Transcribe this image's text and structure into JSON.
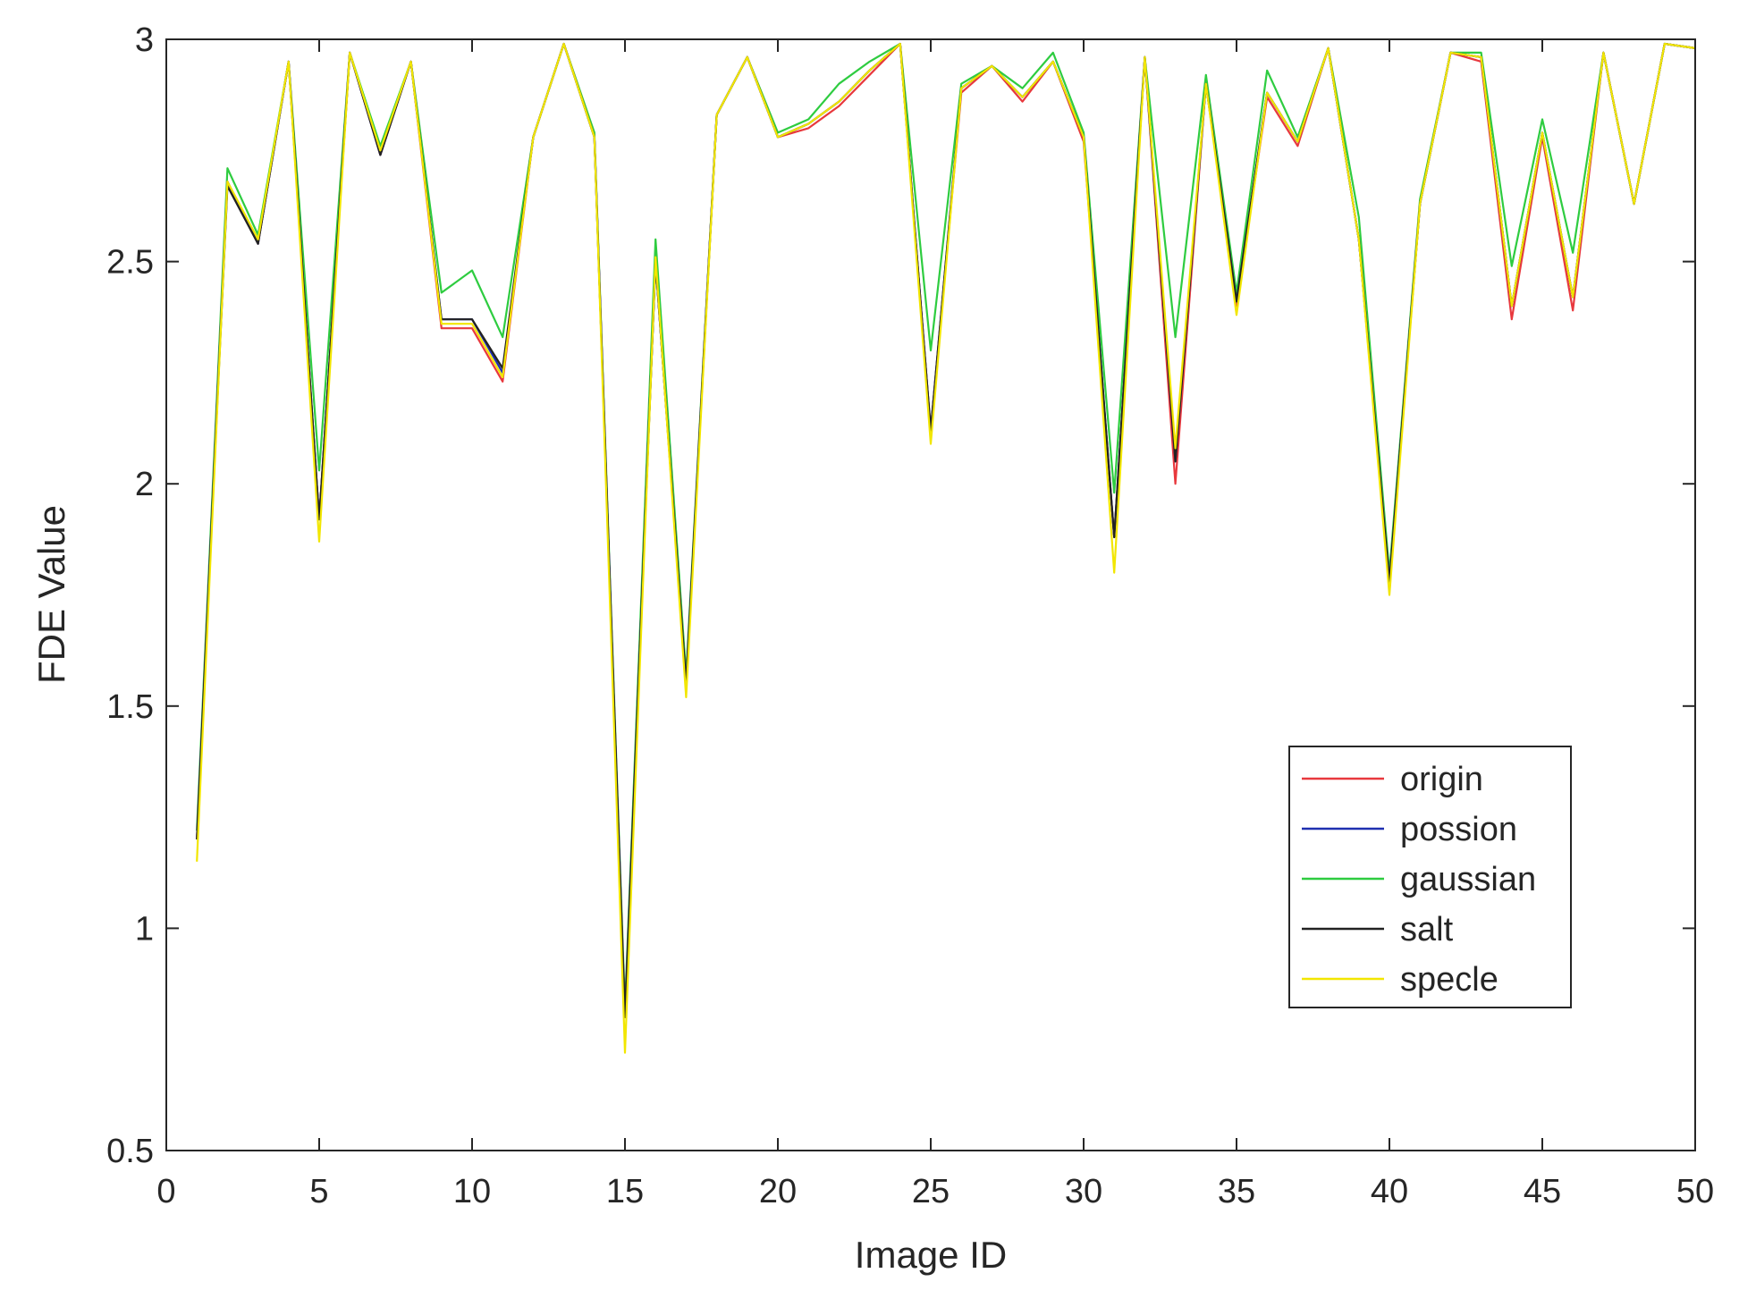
{
  "chart_data": {
    "type": "line",
    "title": "",
    "xlabel": "Image ID",
    "ylabel": "FDE Value",
    "xlim": [
      0,
      50
    ],
    "ylim": [
      0.5,
      3
    ],
    "xticks": [
      0,
      5,
      10,
      15,
      20,
      25,
      30,
      35,
      40,
      45,
      50
    ],
    "yticks": [
      0.5,
      1,
      1.5,
      2,
      2.5,
      3
    ],
    "xtick_labels": [
      "0",
      "5",
      "10",
      "15",
      "20",
      "25",
      "30",
      "35",
      "40",
      "45",
      "50"
    ],
    "ytick_labels": [
      "0.5",
      "1",
      "1.5",
      "2",
      "2.5",
      "3"
    ],
    "grid": false,
    "legend_position": "lower-right",
    "x": [
      1,
      2,
      3,
      4,
      5,
      6,
      7,
      8,
      9,
      10,
      11,
      12,
      13,
      14,
      15,
      16,
      17,
      18,
      19,
      20,
      21,
      22,
      23,
      24,
      25,
      26,
      27,
      28,
      29,
      30,
      31,
      32,
      33,
      34,
      35,
      36,
      37,
      38,
      39,
      40,
      41,
      42,
      43,
      44,
      45,
      46,
      47,
      48,
      49,
      50
    ],
    "series": [
      {
        "name": "origin",
        "color": "#e8383d",
        "values": [
          1.2,
          2.68,
          2.54,
          2.95,
          1.92,
          2.97,
          2.74,
          2.95,
          2.35,
          2.35,
          2.23,
          2.78,
          2.99,
          2.78,
          0.8,
          2.5,
          1.55,
          2.83,
          2.96,
          2.78,
          2.8,
          2.85,
          2.92,
          2.99,
          2.12,
          2.88,
          2.94,
          2.86,
          2.95,
          2.77,
          1.88,
          2.96,
          2.0,
          2.9,
          2.4,
          2.87,
          2.76,
          2.98,
          2.55,
          1.78,
          2.63,
          2.97,
          2.95,
          2.37,
          2.78,
          2.39,
          2.97,
          2.63,
          2.99,
          2.98
        ]
      },
      {
        "name": "possion",
        "color": "#1f2fb0",
        "values": [
          1.2,
          2.68,
          2.54,
          2.95,
          1.92,
          2.97,
          2.74,
          2.95,
          2.37,
          2.37,
          2.25,
          2.78,
          2.99,
          2.78,
          0.8,
          2.5,
          1.55,
          2.83,
          2.96,
          2.78,
          2.81,
          2.86,
          2.93,
          2.99,
          2.12,
          2.89,
          2.94,
          2.87,
          2.95,
          2.78,
          1.88,
          2.96,
          2.05,
          2.9,
          2.41,
          2.88,
          2.77,
          2.98,
          2.55,
          1.78,
          2.63,
          2.97,
          2.96,
          2.4,
          2.79,
          2.42,
          2.97,
          2.63,
          2.99,
          2.98
        ]
      },
      {
        "name": "gaussian",
        "color": "#2ecc40",
        "values": [
          1.22,
          2.71,
          2.56,
          2.95,
          2.03,
          2.97,
          2.76,
          2.95,
          2.43,
          2.48,
          2.33,
          2.78,
          2.99,
          2.79,
          0.82,
          2.55,
          1.57,
          2.83,
          2.96,
          2.79,
          2.82,
          2.9,
          2.95,
          2.99,
          2.3,
          2.9,
          2.94,
          2.89,
          2.97,
          2.79,
          1.98,
          2.96,
          2.33,
          2.92,
          2.43,
          2.93,
          2.78,
          2.98,
          2.6,
          1.8,
          2.64,
          2.97,
          2.97,
          2.49,
          2.82,
          2.52,
          2.97,
          2.63,
          2.99,
          2.98
        ]
      },
      {
        "name": "salt",
        "color": "#222222",
        "values": [
          1.2,
          2.67,
          2.54,
          2.95,
          1.92,
          2.97,
          2.74,
          2.95,
          2.37,
          2.37,
          2.26,
          2.78,
          2.99,
          2.78,
          0.8,
          2.5,
          1.55,
          2.83,
          2.96,
          2.78,
          2.81,
          2.86,
          2.93,
          2.99,
          2.12,
          2.89,
          2.94,
          2.87,
          2.95,
          2.78,
          1.88,
          2.96,
          2.05,
          2.9,
          2.41,
          2.88,
          2.77,
          2.98,
          2.55,
          1.78,
          2.63,
          2.97,
          2.96,
          2.4,
          2.79,
          2.42,
          2.97,
          2.63,
          2.99,
          2.98
        ]
      },
      {
        "name": "specle",
        "color": "#f2e600",
        "values": [
          1.15,
          2.68,
          2.55,
          2.95,
          1.87,
          2.97,
          2.75,
          2.95,
          2.36,
          2.36,
          2.24,
          2.78,
          2.99,
          2.78,
          0.72,
          2.51,
          1.52,
          2.83,
          2.96,
          2.78,
          2.81,
          2.86,
          2.93,
          2.99,
          2.09,
          2.89,
          2.94,
          2.87,
          2.95,
          2.78,
          1.8,
          2.96,
          2.08,
          2.9,
          2.38,
          2.88,
          2.77,
          2.98,
          2.55,
          1.75,
          2.63,
          2.97,
          2.96,
          2.4,
          2.79,
          2.42,
          2.97,
          2.63,
          2.99,
          2.98
        ]
      }
    ]
  }
}
